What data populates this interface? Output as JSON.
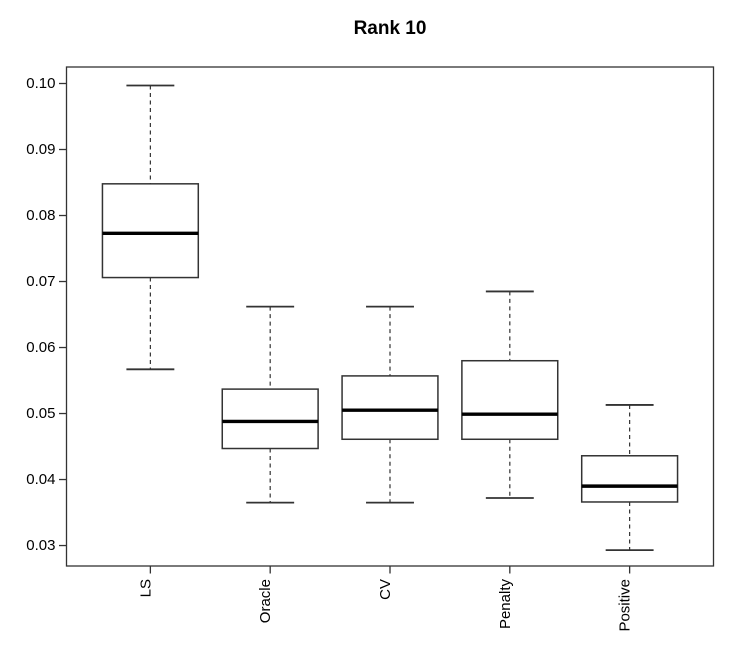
{
  "chart_data": {
    "type": "boxplot",
    "title": "Rank 10",
    "categories": [
      "LS",
      "Oracle",
      "CV",
      "Penalty",
      "Positive"
    ],
    "series": [
      {
        "name": "LS",
        "low": 0.0567,
        "q1": 0.0706,
        "median": 0.0773,
        "q3": 0.0848,
        "high": 0.0997
      },
      {
        "name": "Oracle",
        "low": 0.0365,
        "q1": 0.0447,
        "median": 0.0488,
        "q3": 0.0537,
        "high": 0.0662
      },
      {
        "name": "CV",
        "low": 0.0365,
        "q1": 0.0461,
        "median": 0.0505,
        "q3": 0.0557,
        "high": 0.0662
      },
      {
        "name": "Penalty",
        "low": 0.0372,
        "q1": 0.0461,
        "median": 0.0499,
        "q3": 0.058,
        "high": 0.0685
      },
      {
        "name": "Positive",
        "low": 0.0293,
        "q1": 0.0366,
        "median": 0.039,
        "q3": 0.0436,
        "high": 0.0513
      }
    ],
    "yticks": [
      0.03,
      0.04,
      0.05,
      0.06,
      0.07,
      0.08,
      0.09,
      0.1
    ],
    "ylim": [
      0.0269,
      0.1025
    ],
    "xlabel": "",
    "ylabel": "",
    "grid": false,
    "legend": "none",
    "x_labels_rotated_90": true,
    "whisker_style": "dashed"
  },
  "colors": {
    "line": "#333333",
    "median": "#000000",
    "box_fill": "#ffffff",
    "text": "#000000",
    "background": "#ffffff"
  }
}
